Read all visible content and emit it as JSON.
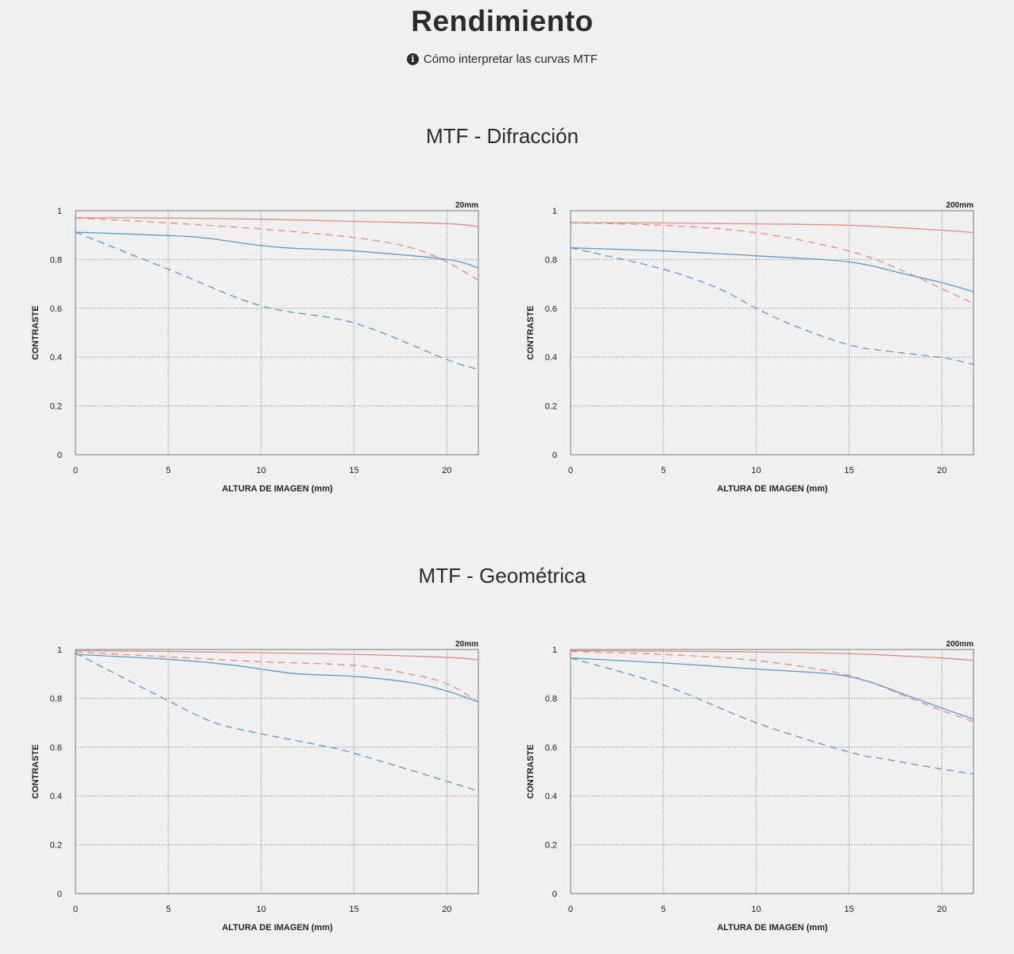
{
  "header": {
    "title": "Rendimiento",
    "help_link": "Cómo interpretar las curvas MTF",
    "help_icon": "info-icon"
  },
  "colors": {
    "red": "#ec8a7c",
    "blue": "#5a9bd0",
    "grid": "#8a8a8a",
    "background": "#f0f0f0"
  },
  "sections": [
    {
      "title": "MTF - Difracción"
    },
    {
      "title": "MTF - Geométrica"
    }
  ],
  "chart_data": [
    {
      "type": "line",
      "section": "MTF - Difracción",
      "title": "20mm",
      "xlabel": "ALTURA DE IMAGEN (mm)",
      "ylabel": "CONTRASTE",
      "xlim": [
        0,
        21.7
      ],
      "ylim": [
        0,
        1
      ],
      "xticks": [
        "0",
        "5",
        "10",
        "15",
        "20"
      ],
      "yticks": [
        "0",
        "0.2",
        "0.4",
        "0.6",
        "0.8",
        "1"
      ],
      "grid": true,
      "series": [
        {
          "color": "#ec8a7c",
          "dash": "solid",
          "x": [
            0,
            5,
            10,
            15,
            20,
            21.7
          ],
          "y": [
            0.971,
            0.97,
            0.965,
            0.956,
            0.947,
            0.935
          ]
        },
        {
          "color": "#ec8a7c",
          "dash": "dashed",
          "x": [
            0,
            5,
            10,
            15,
            18,
            20,
            21.7
          ],
          "y": [
            0.97,
            0.95,
            0.925,
            0.89,
            0.85,
            0.79,
            0.715
          ]
        },
        {
          "color": "#5a9bd0",
          "dash": "solid",
          "x": [
            0,
            5,
            7,
            10,
            12,
            15,
            20,
            21.7
          ],
          "y": [
            0.912,
            0.898,
            0.888,
            0.857,
            0.845,
            0.835,
            0.8,
            0.765
          ]
        },
        {
          "color": "#5a9bd0",
          "dash": "dashed",
          "x": [
            0,
            5,
            10,
            15,
            20,
            21.7
          ],
          "y": [
            0.912,
            0.76,
            0.61,
            0.54,
            0.39,
            0.35
          ]
        }
      ]
    },
    {
      "type": "line",
      "section": "MTF - Difracción",
      "title": "200mm",
      "xlabel": "ALTURA DE IMAGEN (mm)",
      "ylabel": "CONTRASTE",
      "xlim": [
        0,
        21.7
      ],
      "ylim": [
        0,
        1
      ],
      "xticks": [
        "0",
        "5",
        "10",
        "15",
        "20"
      ],
      "yticks": [
        "0",
        "0.2",
        "0.4",
        "0.6",
        "0.8",
        "1"
      ],
      "grid": true,
      "series": [
        {
          "color": "#ec8a7c",
          "dash": "solid",
          "x": [
            0,
            5,
            10,
            15,
            20,
            21.7
          ],
          "y": [
            0.951,
            0.95,
            0.946,
            0.94,
            0.92,
            0.91
          ]
        },
        {
          "color": "#ec8a7c",
          "dash": "dashed",
          "x": [
            0,
            5,
            10,
            15,
            18,
            20,
            21.7
          ],
          "y": [
            0.95,
            0.94,
            0.91,
            0.835,
            0.75,
            0.68,
            0.62
          ]
        },
        {
          "color": "#5a9bd0",
          "dash": "solid",
          "x": [
            0,
            5,
            10,
            15,
            18,
            20,
            21.7
          ],
          "y": [
            0.848,
            0.835,
            0.815,
            0.79,
            0.74,
            0.705,
            0.668
          ]
        },
        {
          "color": "#5a9bd0",
          "dash": "dashed",
          "x": [
            0,
            5,
            8,
            10,
            12,
            15,
            17,
            20,
            21.7
          ],
          "y": [
            0.848,
            0.76,
            0.68,
            0.6,
            0.53,
            0.45,
            0.425,
            0.398,
            0.37
          ]
        }
      ]
    },
    {
      "type": "line",
      "section": "MTF - Geométrica",
      "title": "20mm",
      "xlabel": "ALTURA DE IMAGEN (mm)",
      "ylabel": "CONTRASTE",
      "xlim": [
        0,
        21.7
      ],
      "ylim": [
        0,
        1
      ],
      "xticks": [
        "0",
        "5",
        "10",
        "15",
        "20"
      ],
      "yticks": [
        "0",
        "0.2",
        "0.4",
        "0.6",
        "0.8",
        "1"
      ],
      "grid": true,
      "series": [
        {
          "color": "#ec8a7c",
          "dash": "solid",
          "x": [
            0,
            5,
            10,
            15,
            20,
            21.7
          ],
          "y": [
            0.995,
            0.992,
            0.987,
            0.98,
            0.968,
            0.958
          ]
        },
        {
          "color": "#ec8a7c",
          "dash": "dashed",
          "x": [
            0,
            5,
            10,
            15,
            18,
            20,
            21.7
          ],
          "y": [
            0.99,
            0.97,
            0.95,
            0.935,
            0.9,
            0.86,
            0.785
          ]
        },
        {
          "color": "#5a9bd0",
          "dash": "solid",
          "x": [
            0,
            5,
            8,
            10,
            12,
            15,
            18,
            20,
            21.7
          ],
          "y": [
            0.98,
            0.96,
            0.94,
            0.92,
            0.9,
            0.89,
            0.865,
            0.83,
            0.785
          ]
        },
        {
          "color": "#5a9bd0",
          "dash": "dashed",
          "x": [
            0,
            5,
            7.5,
            10,
            13,
            15,
            20,
            21.7
          ],
          "y": [
            0.985,
            0.79,
            0.7,
            0.655,
            0.61,
            0.575,
            0.46,
            0.42
          ]
        }
      ]
    },
    {
      "type": "line",
      "section": "MTF - Geométrica",
      "title": "200mm",
      "xlabel": "ALTURA DE IMAGEN (mm)",
      "ylabel": "CONTRASTE",
      "xlim": [
        0,
        21.7
      ],
      "ylim": [
        0,
        1
      ],
      "xticks": [
        "0",
        "5",
        "10",
        "15",
        "20"
      ],
      "yticks": [
        "0",
        "0.2",
        "0.4",
        "0.6",
        "0.8",
        "1"
      ],
      "grid": true,
      "series": [
        {
          "color": "#ec8a7c",
          "dash": "solid",
          "x": [
            0,
            5,
            10,
            15,
            20,
            21.7
          ],
          "y": [
            0.995,
            0.993,
            0.99,
            0.983,
            0.965,
            0.955
          ]
        },
        {
          "color": "#ec8a7c",
          "dash": "dashed",
          "x": [
            0,
            5,
            10,
            14,
            16,
            18,
            20,
            21.7
          ],
          "y": [
            0.992,
            0.98,
            0.955,
            0.91,
            0.87,
            0.81,
            0.75,
            0.705
          ]
        },
        {
          "color": "#5a9bd0",
          "dash": "solid",
          "x": [
            0,
            5,
            10,
            14,
            16,
            18,
            20,
            21.7
          ],
          "y": [
            0.965,
            0.945,
            0.92,
            0.9,
            0.87,
            0.815,
            0.76,
            0.715
          ]
        },
        {
          "color": "#5a9bd0",
          "dash": "dashed",
          "x": [
            0,
            5,
            10,
            15,
            17,
            20,
            21.7
          ],
          "y": [
            0.965,
            0.855,
            0.7,
            0.58,
            0.55,
            0.51,
            0.49
          ]
        }
      ]
    }
  ]
}
